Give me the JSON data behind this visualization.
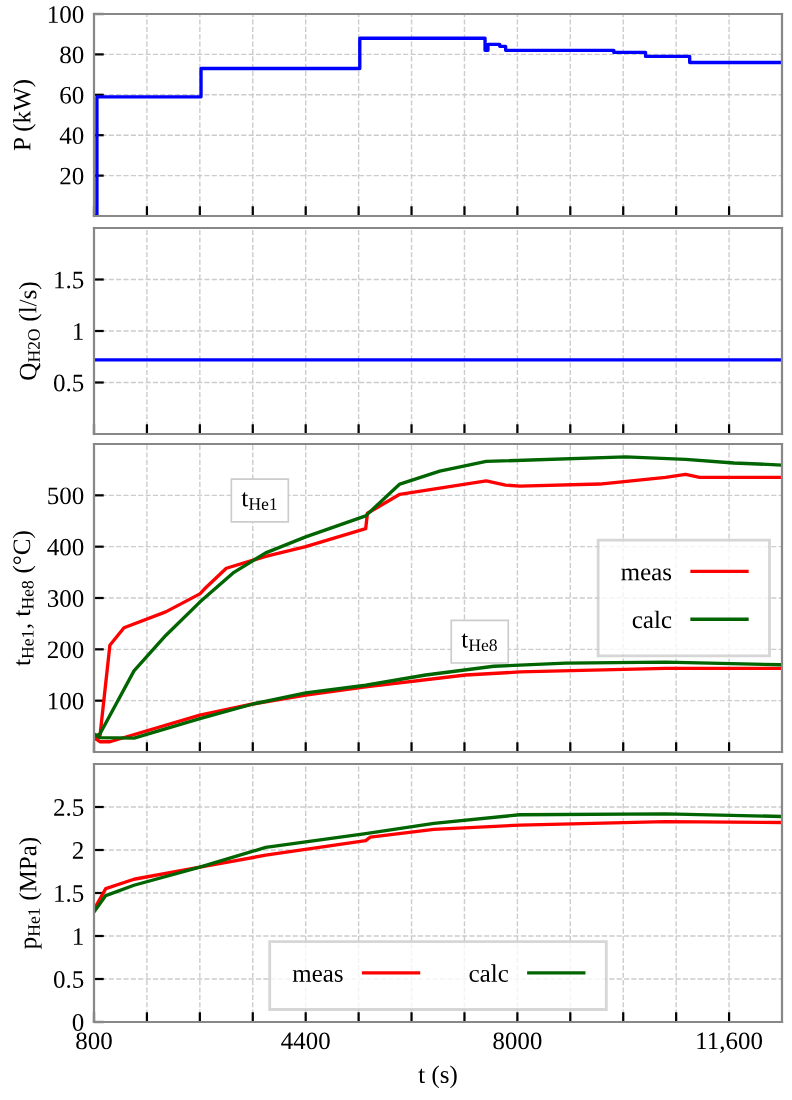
{
  "chart_data": [
    {
      "type": "step",
      "ylabel": "P (kW)",
      "xlim": [
        800,
        12500
      ],
      "ylim": [
        0,
        100
      ],
      "yticks": [
        20,
        40,
        60,
        80,
        100
      ],
      "grid": true,
      "tick_labels": "y",
      "series": [
        {
          "color": "#0000ff",
          "x": [
            830,
            850,
            2620,
            5320,
            7450,
            7500,
            7700,
            7800,
            9640,
            10180,
            10930,
            12500
          ],
          "values": [
            0,
            59,
            73,
            88,
            82,
            85,
            84,
            82,
            81,
            79,
            76,
            76
          ]
        }
      ]
    },
    {
      "type": "line",
      "ylabel": "Q$_{H2O}$ (l/s)",
      "xlim": [
        800,
        12500
      ],
      "ylim": [
        0,
        2
      ],
      "yticks": [
        0.5,
        1,
        1.5
      ],
      "grid": true,
      "tick_labels": "y",
      "series": [
        {
          "color": "#0000ff",
          "x": [
            800,
            12500
          ],
          "values": [
            0.72,
            0.72
          ]
        }
      ]
    },
    {
      "type": "line",
      "ylabel": "t$_{He1}$, t$_{He8}$ (°C)",
      "xlim": [
        800,
        12500
      ],
      "ylim": [
        0,
        600
      ],
      "yticks": [
        100,
        200,
        300,
        400,
        500
      ],
      "grid": true,
      "tick_labels": "y",
      "legend": "right",
      "annotations": [
        {
          "text": "t$_{He1}$",
          "x": 3620,
          "y": 490
        },
        {
          "text": "t$_{He8}$",
          "x": 7360,
          "y": 215
        }
      ],
      "series": [
        {
          "name": "meas",
          "color": "#ff0000",
          "x": [
            800,
            900,
            1070,
            1310,
            2020,
            2600,
            2700,
            3050,
            3720,
            4400,
            5420,
            5450,
            6000,
            7470,
            7800,
            8040,
            9400,
            10520,
            10860,
            11100,
            12500
          ],
          "values": [
            25,
            30,
            208,
            242,
            273,
            308,
            320,
            358,
            381,
            400,
            435,
            465,
            502,
            528,
            520,
            518,
            522,
            535,
            541,
            535,
            535
          ]
        },
        {
          "name": "calc",
          "color": "#006400",
          "x": [
            800,
            900,
            1480,
            2020,
            2600,
            3180,
            3720,
            4400,
            5420,
            6000,
            6680,
            7470,
            9840,
            10860,
            11680,
            12500
          ],
          "values": [
            30,
            35,
            158,
            227,
            292,
            350,
            388,
            419,
            460,
            522,
            547,
            566,
            575,
            570,
            563,
            559
          ]
        },
        {
          "color": "#ff0000",
          "x": [
            800,
            900,
            1070,
            2600,
            3520,
            4400,
            5420,
            7120,
            8040,
            10520,
            12500
          ],
          "values": [
            28,
            20,
            20,
            72,
            94,
            111,
            127,
            150,
            156,
            163,
            163
          ]
        },
        {
          "color": "#006400",
          "x": [
            800,
            900,
            1480,
            2600,
            3520,
            4400,
            5420,
            6440,
            7600,
            8820,
            10520,
            12500
          ],
          "values": [
            35,
            28,
            27,
            65,
            94,
            115,
            130,
            150,
            167,
            173,
            175,
            170
          ]
        }
      ]
    },
    {
      "type": "line",
      "ylabel": "p$_{He1}$ (MPa)",
      "xlabel": "t (s)",
      "xlim": [
        800,
        12500
      ],
      "ylim": [
        0,
        3
      ],
      "yticks": [
        0,
        0.5,
        1,
        1.5,
        2,
        2.5
      ],
      "xticks": [
        800,
        {
          "value": 1700,
          "label": null
        },
        {
          "value": 2600,
          "label": null
        },
        {
          "value": 3500,
          "label": null
        },
        4400,
        {
          "value": 5300,
          "label": null
        },
        {
          "value": 6200,
          "label": null
        },
        {
          "value": 7100,
          "label": null
        },
        8000,
        {
          "value": 8900,
          "label": null
        },
        {
          "value": 9800,
          "label": null
        },
        {
          "value": 10700,
          "label": null
        },
        {
          "value": 11600,
          "label": "11,600"
        }
      ],
      "grid": true,
      "legend": "bottom",
      "series": [
        {
          "name": "meas",
          "color": "#ff0000",
          "x": [
            800,
            1000,
            1480,
            2600,
            3720,
            5420,
            5500,
            6580,
            8040,
            10520,
            12500
          ],
          "values": [
            1.31,
            1.55,
            1.66,
            1.8,
            1.94,
            2.11,
            2.15,
            2.24,
            2.29,
            2.33,
            2.32
          ]
        },
        {
          "name": "calc",
          "color": "#006400",
          "x": [
            800,
            1000,
            1480,
            2600,
            3720,
            5420,
            6580,
            8040,
            10520,
            12500
          ],
          "values": [
            1.28,
            1.47,
            1.59,
            1.8,
            2.03,
            2.19,
            2.31,
            2.41,
            2.42,
            2.39
          ]
        }
      ]
    }
  ]
}
